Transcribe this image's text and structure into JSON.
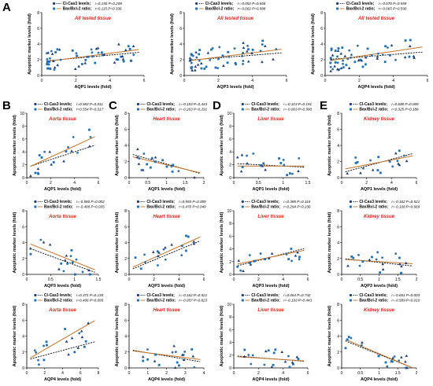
{
  "labels": {
    "y_axis": "Apoptotic marker levels (fold)",
    "legend_cas3": "Cl-Cas3 levels;",
    "legend_bax": "Bax/Bcl-2 ratio;"
  },
  "colors": {
    "cas3_points": "#1f3b73",
    "cas3_points_alt": "#2f6fa8",
    "cas3_line": "#000000",
    "bax_points": "#1e6fb5",
    "bax_line": "#c2742a",
    "tissue_label": "#d6281c"
  },
  "chart_data": [
    {
      "id": "A1",
      "type": "scatter",
      "panel_letter": "A",
      "tissue": "All tested tissue",
      "xlabel": "AQP1 levels (fold)",
      "xlim": [
        0,
        6
      ],
      "ylim": [
        0,
        8
      ],
      "xticks": [
        0,
        2,
        4,
        6
      ],
      "yticks": [
        0,
        2,
        4,
        6,
        8
      ],
      "legend": {
        "cas3": "r=0.150 P=0.209",
        "bax": "r=0.115 P=0.336"
      },
      "series": [
        {
          "name": "Cl-Cas3 levels",
          "fit": {
            "slope": 0.2,
            "intercept": 1.8
          }
        },
        {
          "name": "Bax/Bcl-2 ratio",
          "fit": {
            "slope": 0.28,
            "intercept": 1.7
          }
        }
      ]
    },
    {
      "id": "A2",
      "type": "scatter",
      "tissue": "All tested tissue",
      "xlabel": "AQP3 levels (fold)",
      "xlim": [
        0,
        6
      ],
      "ylim": [
        0,
        8
      ],
      "xticks": [
        0,
        2,
        4,
        6
      ],
      "yticks": [
        0,
        2,
        4,
        6,
        8
      ],
      "legend": {
        "cas3": "r=-0.052 P=0.666",
        "bax": "r=-0.002 P=0.988"
      },
      "series": [
        {
          "name": "Cl-Cas3 levels",
          "fit": {
            "slope": 0.17,
            "intercept": 1.9
          }
        },
        {
          "name": "Bax/Bcl-2 ratio",
          "fit": {
            "slope": 0.27,
            "intercept": 1.8
          }
        }
      ]
    },
    {
      "id": "A3",
      "type": "scatter",
      "tissue": "All tested tissue",
      "xlabel": "AQP4 levels (fold)",
      "xlim": [
        0,
        6
      ],
      "ylim": [
        0,
        8
      ],
      "xticks": [
        0,
        2,
        4,
        6
      ],
      "yticks": [
        0,
        2,
        4,
        6,
        8
      ],
      "legend": {
        "cas3": "r=-0.070 P=0.559",
        "bax": "r=-0.065 P=0.590"
      },
      "series": [
        {
          "name": "Cl-Cas3 levels",
          "fit": {
            "slope": 0.17,
            "intercept": 2.0
          }
        },
        {
          "name": "Bax/Bcl-2 ratio",
          "fit": {
            "slope": 0.32,
            "intercept": 1.8
          }
        }
      ]
    },
    {
      "id": "B1",
      "type": "scatter",
      "panel_letter": "B",
      "tissue": "Aorta tissue",
      "xlabel": "AQP1 levels (fold)",
      "xlim": [
        0,
        6
      ],
      "ylim": [
        0,
        10
      ],
      "xticks": [
        0,
        2,
        4,
        6
      ],
      "yticks": [
        0,
        2,
        4,
        6,
        8,
        10
      ],
      "legend": {
        "cas3": "r=0.583 P=0.011",
        "bax": "r=0.554 P=0.017"
      },
      "series": [
        {
          "name": "Cl-Cas3 levels",
          "fit": {
            "slope": 0.6,
            "intercept": 1.6
          }
        },
        {
          "name": "Bax/Bcl-2 ratio",
          "fit": {
            "slope": 0.85,
            "intercept": 1.5
          }
        }
      ]
    },
    {
      "id": "C1",
      "type": "scatter",
      "panel_letter": "C",
      "tissue": "Heart tissue",
      "xlabel": "AQP1 levels (fold)",
      "xlim": [
        0,
        2.0
      ],
      "ylim": [
        0,
        8
      ],
      "xticks": [
        0,
        0.5,
        1.0,
        1.5,
        2.0
      ],
      "yticks": [
        0,
        2,
        4,
        6,
        8
      ],
      "legend": {
        "cas3": "r=-0.193 P=0.443",
        "bax": "r=-0.263 P=0.291"
      },
      "series": [
        {
          "name": "Cl-Cas3 levels",
          "fit": {
            "slope": -1.3,
            "intercept": 3.0
          }
        },
        {
          "name": "Bax/Bcl-2 ratio",
          "fit": {
            "slope": -1.1,
            "intercept": 2.7
          }
        }
      ]
    },
    {
      "id": "D1",
      "type": "scatter",
      "panel_letter": "D",
      "tissue": "Liver tissue",
      "xlabel": "AQP1 levels (fold)",
      "xlim": [
        0,
        1.5
      ],
      "ylim": [
        0,
        10
      ],
      "xticks": [
        0,
        0.5,
        1.0,
        1.5
      ],
      "yticks": [
        0,
        2,
        4,
        6,
        8,
        10
      ],
      "legend": {
        "cas3": "r=-0.323 P=0.191",
        "bax": "r=-0.003 P=0.990"
      },
      "series": [
        {
          "name": "Cl-Cas3 levels",
          "fit": {
            "slope": -0.4,
            "intercept": 2.2
          }
        },
        {
          "name": "Bax/Bcl-2 ratio",
          "fit": {
            "slope": 0.0,
            "intercept": 1.8
          }
        }
      ]
    },
    {
      "id": "E1",
      "type": "scatter",
      "panel_letter": "E",
      "tissue": "Kidney tissue",
      "xlabel": "AQP1 levels (fold)",
      "xlim": [
        0,
        6
      ],
      "ylim": [
        0,
        8
      ],
      "xticks": [
        0,
        2,
        4,
        6
      ],
      "yticks": [
        0,
        2,
        4,
        6,
        8
      ],
      "legend": {
        "cas3": "r=0.600 P=0.009",
        "bax": "r=0.325 P=0.188"
      },
      "series": [
        {
          "name": "Cl-Cas3 levels",
          "fit": {
            "slope": 0.42,
            "intercept": 0.6
          }
        },
        {
          "name": "Bax/Bcl-2 ratio",
          "fit": {
            "slope": 0.3,
            "intercept": 1.0
          }
        }
      ]
    },
    {
      "id": "B2",
      "type": "scatter",
      "tissue": "Aorta tissue",
      "xlabel": "AQP3 levels (fold)",
      "xlim": [
        0,
        1.5
      ],
      "ylim": [
        0,
        8
      ],
      "xticks": [
        0,
        0.5,
        1.0,
        1.5
      ],
      "yticks": [
        0,
        2,
        4,
        6,
        8
      ],
      "legend": {
        "cas3": "r=-0.580 P=0.002",
        "bax": "r=-0.499 P=0.035"
      },
      "series": [
        {
          "name": "Cl-Cas3 levels",
          "fit": {
            "slope": -2.2,
            "intercept": 3.4
          }
        },
        {
          "name": "Bax/Bcl-2 ratio",
          "fit": {
            "slope": -2.4,
            "intercept": 4.0
          }
        }
      ]
    },
    {
      "id": "C2",
      "type": "scatter",
      "tissue": "Heart tissue",
      "xlabel": "AQP3 levels (fold)",
      "xlim": [
        0,
        6
      ],
      "ylim": [
        0,
        8
      ],
      "xticks": [
        0,
        2,
        4,
        6
      ],
      "yticks": [
        0,
        2,
        4,
        6,
        8
      ],
      "legend": {
        "cas3": "r=0.593 P=0.009",
        "bax": "r=0.470 P=0.049"
      },
      "series": [
        {
          "name": "Cl-Cas3 levels",
          "fit": {
            "slope": 0.65,
            "intercept": 0.5
          }
        },
        {
          "name": "Bax/Bcl-2 ratio",
          "fit": {
            "slope": 0.7,
            "intercept": 0.7
          }
        }
      ]
    },
    {
      "id": "D2",
      "type": "scatter",
      "tissue": "Liver tissue",
      "xlabel": "AQP3 levels (fold)",
      "xlim": [
        0,
        6
      ],
      "ylim": [
        0,
        10
      ],
      "xticks": [
        0,
        2,
        4,
        6
      ],
      "yticks": [
        0,
        2,
        4,
        6,
        8,
        10
      ],
      "legend": {
        "cas3": "r=0.385 P=0.115",
        "bax": "r=0.294 P=0.236"
      },
      "series": [
        {
          "name": "Cl-Cas3 levels",
          "fit": {
            "slope": 0.5,
            "intercept": 1.2
          }
        },
        {
          "name": "Bax/Bcl-2 ratio",
          "fit": {
            "slope": 0.4,
            "intercept": 1.5
          }
        }
      ]
    },
    {
      "id": "E2",
      "type": "scatter",
      "tissue": "Kidney tissue",
      "xlabel": "AQP3 levels (fold)",
      "xlim": [
        0,
        2.0
      ],
      "ylim": [
        0,
        8
      ],
      "xticks": [
        0,
        0.5,
        1.0,
        1.5,
        2.0
      ],
      "yticks": [
        0,
        2,
        4,
        6,
        8
      ],
      "legend": {
        "cas3": "r=-0.162 P=0.521",
        "bax": "r=-0.108 P=0.669"
      },
      "series": [
        {
          "name": "Cl-Cas3 levels",
          "fit": {
            "slope": -0.5,
            "intercept": 2.0
          }
        },
        {
          "name": "Bax/Bcl-2 ratio",
          "fit": {
            "slope": -0.3,
            "intercept": 1.9
          }
        }
      ]
    },
    {
      "id": "B3",
      "type": "scatter",
      "tissue": "Aorta tissue",
      "xlabel": "AQP4 levels (fold)",
      "xlim": [
        0,
        8
      ],
      "ylim": [
        0,
        8
      ],
      "xticks": [
        0,
        2,
        4,
        6,
        8
      ],
      "yticks": [
        0,
        2,
        4,
        6,
        8
      ],
      "legend": {
        "cas3": "r=0.371 P=0.130",
        "bax": "r=0.406 P=0.095"
      },
      "series": [
        {
          "name": "Cl-Cas3 levels",
          "fit": {
            "slope": 0.3,
            "intercept": 1.0
          }
        },
        {
          "name": "Bax/Bcl-2 ratio",
          "fit": {
            "slope": 0.65,
            "intercept": 1.0
          }
        }
      ]
    },
    {
      "id": "C3",
      "type": "scatter",
      "tissue": "Heart tissue",
      "xlabel": "AQP4 levels (fold)",
      "xlim": [
        0,
        4
      ],
      "ylim": [
        0,
        8
      ],
      "xticks": [
        0,
        1,
        2,
        3,
        4
      ],
      "yticks": [
        0,
        2,
        4,
        6,
        8
      ],
      "legend": {
        "cas3": "r=-0.162 P=0.521",
        "bax": "r=-0.057 P=0.823"
      },
      "series": [
        {
          "name": "Cl-Cas3 levels",
          "fit": {
            "slope": -0.4,
            "intercept": 2.3
          }
        },
        {
          "name": "Bax/Bcl-2 ratio",
          "fit": {
            "slope": -0.3,
            "intercept": 2.2
          }
        }
      ]
    },
    {
      "id": "D3",
      "type": "scatter",
      "tissue": "Liver tissue",
      "xlabel": "AQP4 levels (fold)",
      "xlim": [
        0,
        6
      ],
      "ylim": [
        0,
        10
      ],
      "xticks": [
        0,
        2,
        4,
        6
      ],
      "yticks": [
        0,
        2,
        4,
        6,
        8,
        10
      ],
      "legend": {
        "cas3": "r=0.064 P=0.742",
        "bax": "r=-0.193 P=0.443"
      },
      "series": [
        {
          "name": "Cl-Cas3 levels",
          "fit": {
            "slope": -0.15,
            "intercept": 1.9
          }
        },
        {
          "name": "Bax/Bcl-2 ratio",
          "fit": {
            "slope": -0.12,
            "intercept": 1.8
          }
        }
      ]
    },
    {
      "id": "E3",
      "type": "scatter",
      "tissue": "Kidney tissue",
      "xlabel": "AQP4 levels (fold)",
      "xlim": [
        0,
        2.0
      ],
      "ylim": [
        0,
        8
      ],
      "xticks": [
        0,
        0.5,
        1.0,
        1.5,
        2.0
      ],
      "yticks": [
        0,
        2,
        4,
        6,
        8
      ],
      "legend": {
        "cas3": "r=-0.651 P=0.003",
        "bax": "r=-0.589 P=0.010"
      },
      "series": [
        {
          "name": "Cl-Cas3 levels",
          "fit": {
            "slope": -2.0,
            "intercept": 3.6
          }
        },
        {
          "name": "Bax/Bcl-2 ratio",
          "fit": {
            "slope": -2.1,
            "intercept": 3.8
          }
        }
      ]
    }
  ]
}
